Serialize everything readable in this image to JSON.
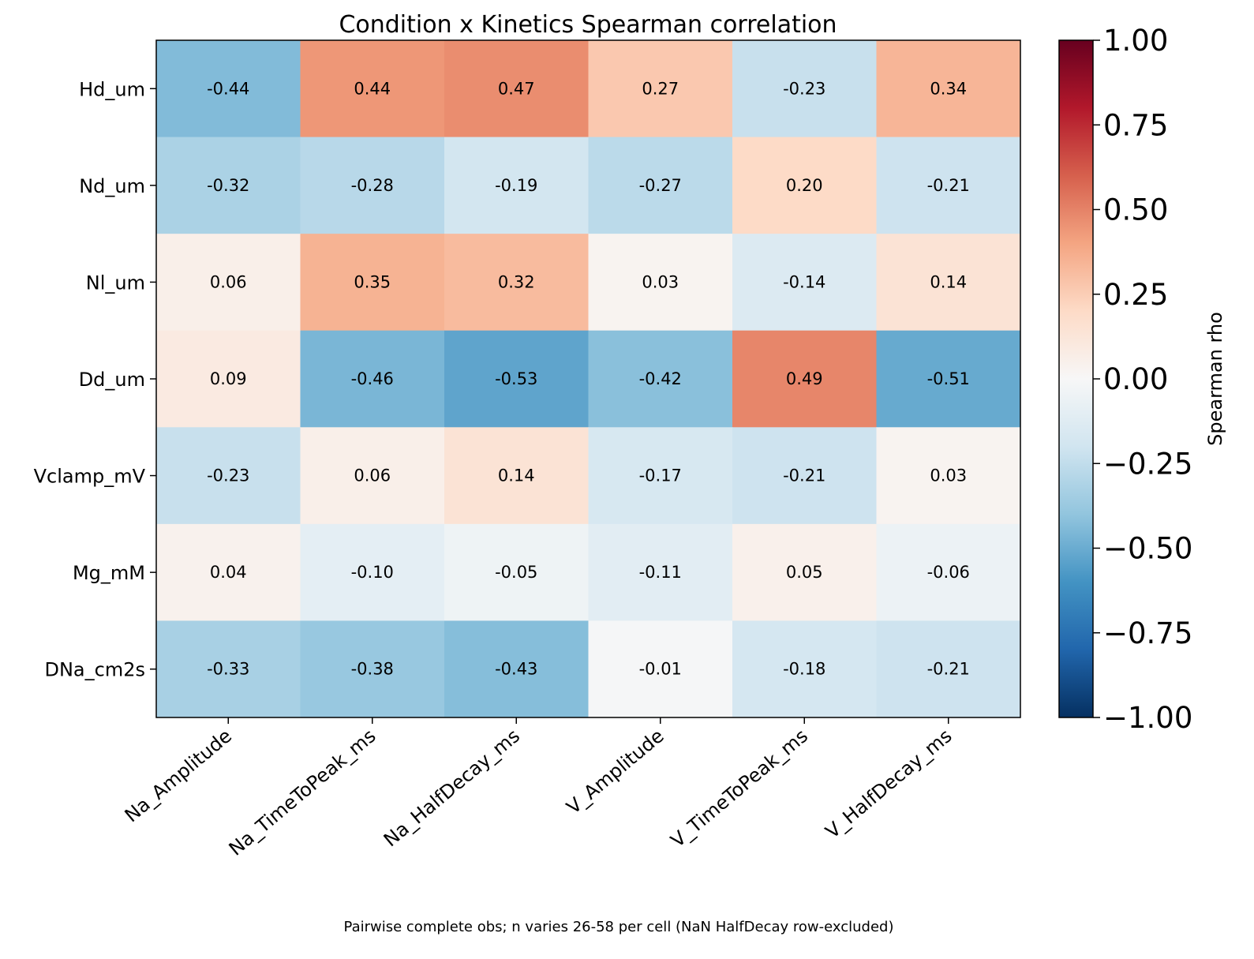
{
  "chart_data": {
    "type": "heatmap",
    "title": "Condition x Kinetics Spearman correlation",
    "rows": [
      "Hd_um",
      "Nd_um",
      "Nl_um",
      "Dd_um",
      "Vclamp_mV",
      "Mg_mM",
      "DNa_cm2s"
    ],
    "columns": [
      "Na_Amplitude",
      "Na_TimeToPeak_ms",
      "Na_HalfDecay_ms",
      "V_Amplitude",
      "V_TimeToPeak_ms",
      "V_HalfDecay_ms"
    ],
    "values": [
      [
        -0.44,
        0.44,
        0.47,
        0.27,
        -0.23,
        0.34
      ],
      [
        -0.32,
        -0.28,
        -0.19,
        -0.27,
        0.2,
        -0.21
      ],
      [
        0.06,
        0.35,
        0.32,
        0.03,
        -0.14,
        0.14
      ],
      [
        0.09,
        -0.46,
        -0.53,
        -0.42,
        0.49,
        -0.51
      ],
      [
        -0.23,
        0.06,
        0.14,
        -0.17,
        -0.21,
        0.03
      ],
      [
        0.04,
        -0.1,
        -0.05,
        -0.11,
        0.05,
        -0.06
      ],
      [
        -0.33,
        -0.38,
        -0.43,
        -0.01,
        -0.18,
        -0.21
      ]
    ],
    "value_labels": [
      [
        "-0.44",
        "0.44",
        "0.47",
        "0.27",
        "-0.23",
        "0.34"
      ],
      [
        "-0.32",
        "-0.28",
        "-0.19",
        "-0.27",
        "0.20",
        "-0.21"
      ],
      [
        "0.06",
        "0.35",
        "0.32",
        "0.03",
        "-0.14",
        "0.14"
      ],
      [
        "0.09",
        "-0.46",
        "-0.53",
        "-0.42",
        "0.49",
        "-0.51"
      ],
      [
        "-0.23",
        "0.06",
        "0.14",
        "-0.17",
        "-0.21",
        "0.03"
      ],
      [
        "0.04",
        "-0.10",
        "-0.05",
        "-0.11",
        "0.05",
        "-0.06"
      ],
      [
        "-0.33",
        "-0.38",
        "-0.43",
        "-0.01",
        "-0.18",
        "-0.21"
      ]
    ],
    "colormap": "RdBu_r",
    "colormap_stops": [
      "#053061",
      "#2166ac",
      "#4393c3",
      "#92c5de",
      "#d1e5f0",
      "#f7f7f7",
      "#fddbc7",
      "#f4a582",
      "#d6604d",
      "#b2182b",
      "#67001f"
    ],
    "vmin": -1.0,
    "vmax": 1.0,
    "colorbar": {
      "label": "Spearman rho",
      "ticks": [
        1.0,
        0.75,
        0.5,
        0.25,
        0.0,
        -0.25,
        -0.5,
        -0.75,
        -1.0
      ],
      "tick_labels": [
        "1.00",
        "0.75",
        "0.50",
        "0.25",
        "0.00",
        "−0.25",
        "−0.50",
        "−0.75",
        "−1.00"
      ]
    },
    "footnote": "Pairwise complete obs; n varies 26-58 per cell (NaN HalfDecay row-excluded)"
  }
}
